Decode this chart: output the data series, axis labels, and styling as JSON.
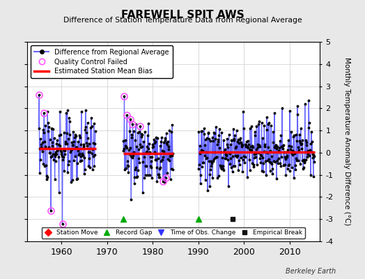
{
  "title": "FAREWELL SPIT AWS",
  "subtitle": "Difference of Station Temperature Data from Regional Average",
  "ylabel": "Monthly Temperature Anomaly Difference (°C)",
  "xlabel_years": [
    1960,
    1970,
    1980,
    1990,
    2000,
    2010
  ],
  "ylim": [
    -4,
    5
  ],
  "yticks": [
    -4,
    -3,
    -2,
    -1,
    0,
    1,
    2,
    3,
    4,
    5
  ],
  "background_color": "#e8e8e8",
  "plot_bg_color": "#ffffff",
  "grid_color": "#cccccc",
  "line_color": "#6666ff",
  "dot_color": "#000000",
  "bias_color": "#ff0000",
  "qc_color": "#ff55ff",
  "watermark": "Berkeley Earth",
  "seg1_xstart": 1955.0,
  "seg1_xend": 1967.5,
  "seg1_bias": 0.18,
  "seg2_xstart": 1973.5,
  "seg2_xend": 1984.5,
  "seg2_bias": -0.05,
  "seg3_xstart": 1990.0,
  "seg3_xend": 2015.5,
  "seg3_bias": 0.03,
  "record_gaps": [
    1973.5,
    1990.0
  ],
  "empirical_breaks": [
    1997.5
  ],
  "xlim_left": 1952.5,
  "xlim_right": 2016.5,
  "seed": 7
}
